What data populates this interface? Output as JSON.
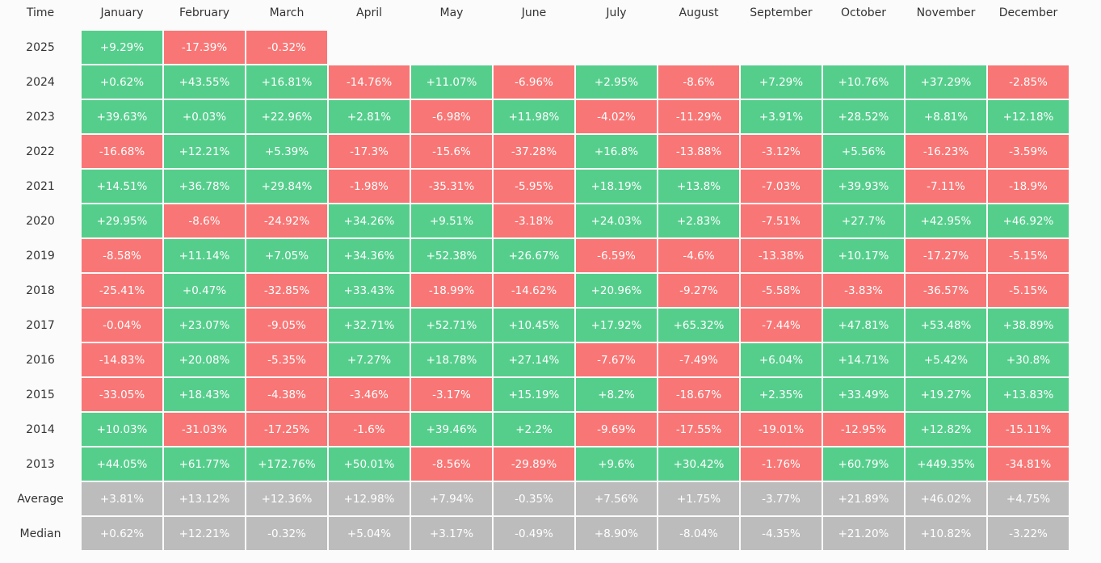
{
  "table": {
    "header": [
      "Time",
      "January",
      "February",
      "March",
      "April",
      "May",
      "June",
      "July",
      "August",
      "September",
      "October",
      "November",
      "December"
    ],
    "rows": [
      [
        "2025",
        "+9.29%",
        "-17.39%",
        "-0.32%"
      ],
      [
        "2024",
        "+0.62%",
        "+43.55%",
        "+16.81%",
        "-14.76%",
        "+11.07%",
        "-6.96%",
        "+2.95%",
        "-8.6%",
        "+7.29%",
        "+10.76%",
        "+37.29%",
        "-2.85%"
      ],
      [
        "2023",
        "+39.63%",
        "+0.03%",
        "+22.96%",
        "+2.81%",
        "-6.98%",
        "+11.98%",
        "-4.02%",
        "-11.29%",
        "+3.91%",
        "+28.52%",
        "+8.81%",
        "+12.18%"
      ],
      [
        "2022",
        "-16.68%",
        "+12.21%",
        "+5.39%",
        "-17.3%",
        "-15.6%",
        "-37.28%",
        "+16.8%",
        "-13.88%",
        "-3.12%",
        "+5.56%",
        "-16.23%",
        "-3.59%"
      ],
      [
        "2021",
        "+14.51%",
        "+36.78%",
        "+29.84%",
        "-1.98%",
        "-35.31%",
        "-5.95%",
        "+18.19%",
        "+13.8%",
        "-7.03%",
        "+39.93%",
        "-7.11%",
        "-18.9%"
      ],
      [
        "2020",
        "+29.95%",
        "-8.6%",
        "-24.92%",
        "+34.26%",
        "+9.51%",
        "-3.18%",
        "+24.03%",
        "+2.83%",
        "-7.51%",
        "+27.7%",
        "+42.95%",
        "+46.92%"
      ],
      [
        "2019",
        "-8.58%",
        "+11.14%",
        "+7.05%",
        "+34.36%",
        "+52.38%",
        "+26.67%",
        "-6.59%",
        "-4.6%",
        "-13.38%",
        "+10.17%",
        "-17.27%",
        "-5.15%"
      ],
      [
        "2018",
        "-25.41%",
        "+0.47%",
        "-32.85%",
        "+33.43%",
        "-18.99%",
        "-14.62%",
        "+20.96%",
        "-9.27%",
        "-5.58%",
        "-3.83%",
        "-36.57%",
        "-5.15%"
      ],
      [
        "2017",
        "-0.04%",
        "+23.07%",
        "-9.05%",
        "+32.71%",
        "+52.71%",
        "+10.45%",
        "+17.92%",
        "+65.32%",
        "-7.44%",
        "+47.81%",
        "+53.48%",
        "+38.89%"
      ],
      [
        "2016",
        "-14.83%",
        "+20.08%",
        "-5.35%",
        "+7.27%",
        "+18.78%",
        "+27.14%",
        "-7.67%",
        "-7.49%",
        "+6.04%",
        "+14.71%",
        "+5.42%",
        "+30.8%"
      ],
      [
        "2015",
        "-33.05%",
        "+18.43%",
        "-4.38%",
        "-3.46%",
        "-3.17%",
        "+15.19%",
        "+8.2%",
        "-18.67%",
        "+2.35%",
        "+33.49%",
        "+19.27%",
        "+13.83%"
      ],
      [
        "2014",
        "+10.03%",
        "-31.03%",
        "-17.25%",
        "-1.6%",
        "+39.46%",
        "+2.2%",
        "-9.69%",
        "-17.55%",
        "-19.01%",
        "-12.95%",
        "+12.82%",
        "-15.11%"
      ],
      [
        "2013",
        "+44.05%",
        "+61.77%",
        "+172.76%",
        "+50.01%",
        "-8.56%",
        "-29.89%",
        "+9.6%",
        "+30.42%",
        "-1.76%",
        "+60.79%",
        "+449.35%",
        "-34.81%"
      ],
      [
        "Average",
        "+3.81%",
        "+13.12%",
        "+12.36%",
        "+12.98%",
        "+7.94%",
        "-0.35%",
        "+7.56%",
        "+1.75%",
        "-3.77%",
        "+21.89%",
        "+46.02%",
        "+4.75%"
      ],
      [
        "Median",
        "+0.62%",
        "+12.21%",
        "-0.32%",
        "+5.04%",
        "+3.17%",
        "-0.49%",
        "+8.90%",
        "-8.04%",
        "-4.35%",
        "+21.20%",
        "+10.82%",
        "-3.22%"
      ]
    ],
    "summary_row_count": 2,
    "colors": {
      "positive": "#55ce8c",
      "negative": "#f87675",
      "summary": "#bcbcbc"
    }
  }
}
